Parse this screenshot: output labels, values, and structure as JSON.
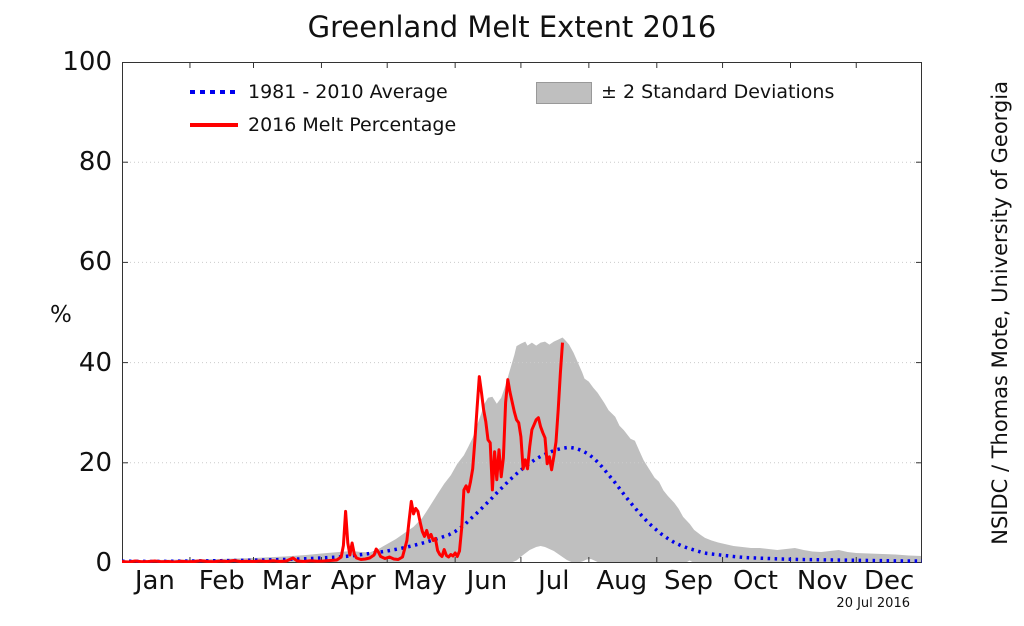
{
  "title": "Greenland Melt Extent 2016",
  "ylabel": "%",
  "credit": "NSIDC / Thomas Mote, University of Georgia",
  "date_stamp": "20 Jul 2016",
  "legend": {
    "average_label": "1981 - 2010 Average",
    "melt_label": "2016 Melt Percentage",
    "std_label": "± 2 Standard Deviations"
  },
  "colors": {
    "average": "#0000ee",
    "melt": "#ff0000",
    "band": "#bfbfbf",
    "grid": "#cccccc",
    "axis": "#333333"
  },
  "chart_data": {
    "type": "line",
    "title": "Greenland Melt Extent 2016",
    "xlabel": "",
    "ylabel": "%",
    "ylim": [
      0,
      100
    ],
    "yticks": [
      0,
      20,
      40,
      60,
      80,
      100
    ],
    "grid_yticks": [
      20,
      40,
      60,
      80
    ],
    "grid": "dotted horizontal",
    "legend_position": "upper left, no frame",
    "x_unit": "day_of_year_2016",
    "xlim": [
      1,
      366
    ],
    "month_labels": [
      "Jan",
      "Feb",
      "Mar",
      "Apr",
      "May",
      "Jun",
      "Jul",
      "Aug",
      "Sep",
      "Oct",
      "Nov",
      "Dec"
    ],
    "month_start_days": [
      1,
      32,
      61,
      92,
      122,
      153,
      183,
      214,
      245,
      275,
      306,
      336,
      366
    ],
    "month_mid_days": [
      16,
      46.5,
      76,
      106.5,
      137,
      167.5,
      198,
      229,
      259.5,
      290,
      320.5,
      351
    ],
    "band": {
      "name": "± 2 Standard Deviations",
      "upper": [
        [
          1,
          0.5
        ],
        [
          15,
          0.6
        ],
        [
          32,
          0.7
        ],
        [
          46,
          0.8
        ],
        [
          61,
          1.0
        ],
        [
          75,
          1.3
        ],
        [
          85,
          1.6
        ],
        [
          92,
          1.9
        ],
        [
          100,
          2.2
        ],
        [
          106,
          2.4
        ],
        [
          110,
          2.2
        ],
        [
          114,
          2.1
        ],
        [
          118,
          2.8
        ],
        [
          122,
          3.8
        ],
        [
          126,
          4.8
        ],
        [
          130,
          6.0
        ],
        [
          134,
          7.2
        ],
        [
          138,
          9.0
        ],
        [
          141,
          11.0
        ],
        [
          145,
          13.8
        ],
        [
          148,
          15.8
        ],
        [
          151,
          17.5
        ],
        [
          154,
          19.8
        ],
        [
          157,
          21.5
        ],
        [
          159,
          23.2
        ],
        [
          161,
          25.0
        ],
        [
          163,
          27.5
        ],
        [
          165,
          30.0
        ],
        [
          166,
          31.5
        ],
        [
          168,
          33.0
        ],
        [
          170,
          33.2
        ],
        [
          172,
          31.8
        ],
        [
          174,
          33.0
        ],
        [
          176,
          35.5
        ],
        [
          178,
          38.5
        ],
        [
          180,
          41.5
        ],
        [
          181,
          43.3
        ],
        [
          183,
          43.8
        ],
        [
          185,
          44.2
        ],
        [
          186,
          43.4
        ],
        [
          188,
          44.0
        ],
        [
          190,
          43.4
        ],
        [
          192,
          44.0
        ],
        [
          194,
          44.2
        ],
        [
          196,
          43.6
        ],
        [
          198,
          44.2
        ],
        [
          200,
          44.6
        ],
        [
          202,
          45.0
        ],
        [
          203,
          44.6
        ],
        [
          205,
          43.6
        ],
        [
          207,
          42.0
        ],
        [
          209,
          40.0
        ],
        [
          211,
          38.0
        ],
        [
          212,
          36.8
        ],
        [
          214,
          36.2
        ],
        [
          216,
          35.0
        ],
        [
          218,
          34.0
        ],
        [
          221,
          32.0
        ],
        [
          223,
          30.5
        ],
        [
          226,
          29.2
        ],
        [
          228,
          27.4
        ],
        [
          230,
          26.5
        ],
        [
          233,
          24.8
        ],
        [
          235,
          24.4
        ],
        [
          237,
          22.4
        ],
        [
          239,
          20.5
        ],
        [
          242,
          18.4
        ],
        [
          244,
          17.0
        ],
        [
          246,
          16.2
        ],
        [
          248,
          14.5
        ],
        [
          250,
          13.4
        ],
        [
          253,
          12.0
        ],
        [
          255,
          10.8
        ],
        [
          257,
          9.2
        ],
        [
          260,
          7.8
        ],
        [
          262,
          6.6
        ],
        [
          265,
          5.6
        ],
        [
          267,
          5.0
        ],
        [
          270,
          4.5
        ],
        [
          273,
          4.1
        ],
        [
          276,
          3.8
        ],
        [
          280,
          3.4
        ],
        [
          284,
          3.2
        ],
        [
          288,
          3.0
        ],
        [
          292,
          3.0
        ],
        [
          296,
          2.8
        ],
        [
          300,
          2.6
        ],
        [
          304,
          2.8
        ],
        [
          308,
          3.0
        ],
        [
          312,
          2.6
        ],
        [
          316,
          2.3
        ],
        [
          320,
          2.2
        ],
        [
          324,
          2.4
        ],
        [
          328,
          2.6
        ],
        [
          332,
          2.2
        ],
        [
          336,
          2.0
        ],
        [
          342,
          1.9
        ],
        [
          348,
          1.8
        ],
        [
          354,
          1.7
        ],
        [
          360,
          1.5
        ],
        [
          366,
          1.4
        ]
      ],
      "lower": [
        [
          1,
          0
        ],
        [
          178,
          0
        ],
        [
          181,
          0.5
        ],
        [
          184,
          1.6
        ],
        [
          187,
          2.6
        ],
        [
          190,
          3.2
        ],
        [
          192,
          3.4
        ],
        [
          194,
          3.2
        ],
        [
          196,
          2.8
        ],
        [
          198,
          2.4
        ],
        [
          200,
          1.8
        ],
        [
          202,
          1.2
        ],
        [
          204,
          0.6
        ],
        [
          206,
          0.2
        ],
        [
          208,
          0
        ],
        [
          211,
          0.3
        ],
        [
          213,
          0.7
        ],
        [
          215,
          0.8
        ],
        [
          217,
          0.4
        ],
        [
          219,
          0
        ],
        [
          258,
          0
        ],
        [
          260,
          0.5
        ],
        [
          262,
          0
        ],
        [
          366,
          0
        ]
      ]
    },
    "series": [
      {
        "name": "1981 - 2010 Average",
        "style": "dotted",
        "color_key": "average",
        "points": [
          [
            1,
            0.35
          ],
          [
            15,
            0.3
          ],
          [
            32,
            0.4
          ],
          [
            46,
            0.45
          ],
          [
            61,
            0.55
          ],
          [
            75,
            0.7
          ],
          [
            85,
            0.85
          ],
          [
            92,
            1.0
          ],
          [
            100,
            1.2
          ],
          [
            107,
            1.5
          ],
          [
            114,
            1.9
          ],
          [
            122,
            2.4
          ],
          [
            128,
            2.9
          ],
          [
            134,
            3.5
          ],
          [
            140,
            4.2
          ],
          [
            146,
            5.0
          ],
          [
            150,
            5.6
          ],
          [
            153,
            6.3
          ],
          [
            157,
            7.5
          ],
          [
            160,
            8.8
          ],
          [
            163,
            10.0
          ],
          [
            166,
            11.3
          ],
          [
            169,
            12.6
          ],
          [
            172,
            14.0
          ],
          [
            175,
            15.3
          ],
          [
            178,
            16.6
          ],
          [
            181,
            17.8
          ],
          [
            184,
            18.9
          ],
          [
            187,
            19.9
          ],
          [
            190,
            20.8
          ],
          [
            193,
            21.5
          ],
          [
            196,
            22.1
          ],
          [
            199,
            22.6
          ],
          [
            202,
            22.9
          ],
          [
            205,
            23.1
          ],
          [
            208,
            22.9
          ],
          [
            211,
            22.4
          ],
          [
            214,
            21.7
          ],
          [
            217,
            20.6
          ],
          [
            220,
            19.2
          ],
          [
            223,
            17.6
          ],
          [
            226,
            16.0
          ],
          [
            229,
            14.3
          ],
          [
            232,
            12.6
          ],
          [
            235,
            11.0
          ],
          [
            238,
            9.5
          ],
          [
            241,
            8.1
          ],
          [
            244,
            6.9
          ],
          [
            247,
            5.8
          ],
          [
            250,
            4.9
          ],
          [
            253,
            4.1
          ],
          [
            256,
            3.5
          ],
          [
            259,
            3.0
          ],
          [
            262,
            2.6
          ],
          [
            265,
            2.2
          ],
          [
            268,
            1.9
          ],
          [
            272,
            1.7
          ],
          [
            276,
            1.5
          ],
          [
            280,
            1.3
          ],
          [
            285,
            1.1
          ],
          [
            290,
            1.0
          ],
          [
            296,
            0.9
          ],
          [
            302,
            0.8
          ],
          [
            310,
            0.7
          ],
          [
            318,
            0.65
          ],
          [
            326,
            0.6
          ],
          [
            334,
            0.55
          ],
          [
            342,
            0.5
          ],
          [
            350,
            0.45
          ],
          [
            358,
            0.4
          ],
          [
            366,
            0.4
          ]
        ]
      },
      {
        "name": "2016 Melt Percentage",
        "style": "solid",
        "color_key": "melt",
        "points": [
          [
            1,
            0.3
          ],
          [
            4,
            0.2
          ],
          [
            7,
            0.4
          ],
          [
            10,
            0.25
          ],
          [
            13,
            0.3
          ],
          [
            16,
            0.4
          ],
          [
            19,
            0.25
          ],
          [
            22,
            0.3
          ],
          [
            25,
            0.2
          ],
          [
            28,
            0.35
          ],
          [
            31,
            0.25
          ],
          [
            34,
            0.3
          ],
          [
            37,
            0.45
          ],
          [
            40,
            0.3
          ],
          [
            43,
            0.25
          ],
          [
            46,
            0.4
          ],
          [
            49,
            0.3
          ],
          [
            52,
            0.5
          ],
          [
            55,
            0.3
          ],
          [
            58,
            0.35
          ],
          [
            61,
            0.3
          ],
          [
            64,
            0.4
          ],
          [
            67,
            0.3
          ],
          [
            70,
            0.45
          ],
          [
            73,
            0.3
          ],
          [
            76,
            0.4
          ],
          [
            79,
            1.0
          ],
          [
            81,
            0.4
          ],
          [
            84,
            0.3
          ],
          [
            87,
            0.45
          ],
          [
            90,
            0.35
          ],
          [
            93,
            0.4
          ],
          [
            96,
            0.5
          ],
          [
            99,
            0.6
          ],
          [
            101,
            1.2
          ],
          [
            102,
            3.5
          ],
          [
            103,
            10.3
          ],
          [
            104,
            4.0
          ],
          [
            105,
            1.6
          ],
          [
            106,
            4.0
          ],
          [
            107,
            1.8
          ],
          [
            108,
            1.0
          ],
          [
            110,
            0.7
          ],
          [
            112,
            0.8
          ],
          [
            114,
            1.0
          ],
          [
            116,
            1.6
          ],
          [
            117,
            2.8
          ],
          [
            118,
            2.2
          ],
          [
            119,
            1.3
          ],
          [
            121,
            0.9
          ],
          [
            123,
            1.2
          ],
          [
            125,
            0.8
          ],
          [
            127,
            0.7
          ],
          [
            129,
            1.2
          ],
          [
            131,
            4.5
          ],
          [
            132,
            8.5
          ],
          [
            133,
            12.3
          ],
          [
            134,
            9.8
          ],
          [
            135,
            10.9
          ],
          [
            136,
            10.3
          ],
          [
            137,
            8.2
          ],
          [
            138,
            6.3
          ],
          [
            139,
            5.3
          ],
          [
            140,
            6.5
          ],
          [
            141,
            5.0
          ],
          [
            142,
            5.7
          ],
          [
            143,
            4.5
          ],
          [
            144,
            4.9
          ],
          [
            145,
            2.5
          ],
          [
            146,
            1.7
          ],
          [
            147,
            1.3
          ],
          [
            148,
            2.7
          ],
          [
            149,
            1.5
          ],
          [
            150,
            1.2
          ],
          [
            151,
            1.7
          ],
          [
            152,
            1.4
          ],
          [
            153,
            2.0
          ],
          [
            154,
            1.3
          ],
          [
            155,
            2.4
          ],
          [
            156,
            7.0
          ],
          [
            157,
            14.6
          ],
          [
            158,
            15.4
          ],
          [
            159,
            14.2
          ],
          [
            160,
            16.2
          ],
          [
            161,
            18.8
          ],
          [
            162,
            24.5
          ],
          [
            163,
            31.0
          ],
          [
            164,
            37.2
          ],
          [
            165,
            34.0
          ],
          [
            166,
            30.6
          ],
          [
            167,
            28.2
          ],
          [
            168,
            24.6
          ],
          [
            169,
            24.0
          ],
          [
            170,
            14.6
          ],
          [
            171,
            22.2
          ],
          [
            172,
            16.6
          ],
          [
            173,
            22.6
          ],
          [
            174,
            17.2
          ],
          [
            175,
            21.0
          ],
          [
            176,
            32.0
          ],
          [
            177,
            36.6
          ],
          [
            178,
            34.2
          ],
          [
            179,
            32.2
          ],
          [
            180,
            30.2
          ],
          [
            181,
            28.6
          ],
          [
            182,
            28.0
          ],
          [
            183,
            25.2
          ],
          [
            184,
            18.8
          ],
          [
            185,
            20.6
          ],
          [
            186,
            18.8
          ],
          [
            187,
            23.2
          ],
          [
            188,
            26.6
          ],
          [
            189,
            27.6
          ],
          [
            190,
            28.6
          ],
          [
            191,
            29.0
          ],
          [
            192,
            27.2
          ],
          [
            193,
            26.0
          ],
          [
            194,
            25.0
          ],
          [
            195,
            19.8
          ],
          [
            196,
            21.2
          ],
          [
            197,
            18.6
          ],
          [
            198,
            21.2
          ],
          [
            199,
            24.2
          ],
          [
            200,
            30.6
          ],
          [
            201,
            38.0
          ],
          [
            202,
            44.0
          ]
        ]
      }
    ]
  }
}
